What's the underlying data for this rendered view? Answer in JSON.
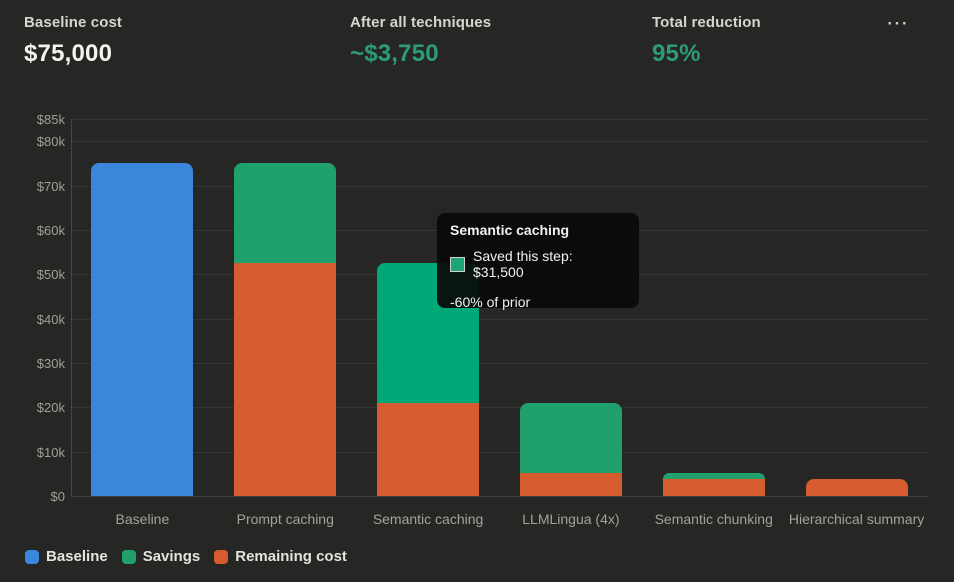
{
  "header": {
    "stats": [
      {
        "label": "Baseline cost",
        "value": "$75,000",
        "value_color": "#f4f4ef"
      },
      {
        "label": "After all techniques",
        "value": "~$3,750",
        "value_color": "#2b9c75"
      },
      {
        "label": "Total reduction",
        "value": "95%",
        "value_color": "#2b9c75"
      }
    ],
    "menu_icon": "⋯"
  },
  "chart_data": {
    "type": "bar",
    "stacked": true,
    "title": "",
    "xlabel": "",
    "ylabel": "",
    "ylim": [
      0,
      85000
    ],
    "grid": true,
    "legend_position": "bottom-left",
    "categories": [
      "Baseline",
      "Prompt caching",
      "Semantic caching",
      "LLMLingua (4x)",
      "Semantic chunking",
      "Hierarchical summary"
    ],
    "series": [
      {
        "name": "Baseline",
        "color": "#3a86da",
        "values": [
          75000,
          0,
          0,
          0,
          0,
          0
        ]
      },
      {
        "name": "Remaining cost",
        "color": "#d65b2e",
        "values": [
          0,
          52500,
          21000,
          5250,
          3750,
          3750
        ]
      },
      {
        "name": "Savings",
        "color": "#1fa06d",
        "values": [
          0,
          22500,
          31500,
          15750,
          1500,
          0
        ]
      }
    ],
    "yticks": [
      {
        "value": 0,
        "label": "$0"
      },
      {
        "value": 10000,
        "label": "$10k"
      },
      {
        "value": 20000,
        "label": "$20k"
      },
      {
        "value": 30000,
        "label": "$30k"
      },
      {
        "value": 40000,
        "label": "$40k"
      },
      {
        "value": 50000,
        "label": "$50k"
      },
      {
        "value": 60000,
        "label": "$60k"
      },
      {
        "value": 70000,
        "label": "$70k"
      },
      {
        "value": 80000,
        "label": "$80k"
      },
      {
        "value": 85000,
        "label": "$85k"
      }
    ],
    "highlight": {
      "category": "Semantic caching",
      "series": "Savings",
      "color": "#00a878"
    }
  },
  "tooltip": {
    "title": "Semantic caching",
    "swatch_color": "#1ca578",
    "line1": "Saved this step: $31,500",
    "line2": "-60% of prior"
  },
  "legend": {
    "items": [
      {
        "label": "Baseline",
        "color": "#3a86da"
      },
      {
        "label": "Savings",
        "color": "#1fa06d"
      },
      {
        "label": "Remaining cost",
        "color": "#d65b2e"
      }
    ]
  }
}
